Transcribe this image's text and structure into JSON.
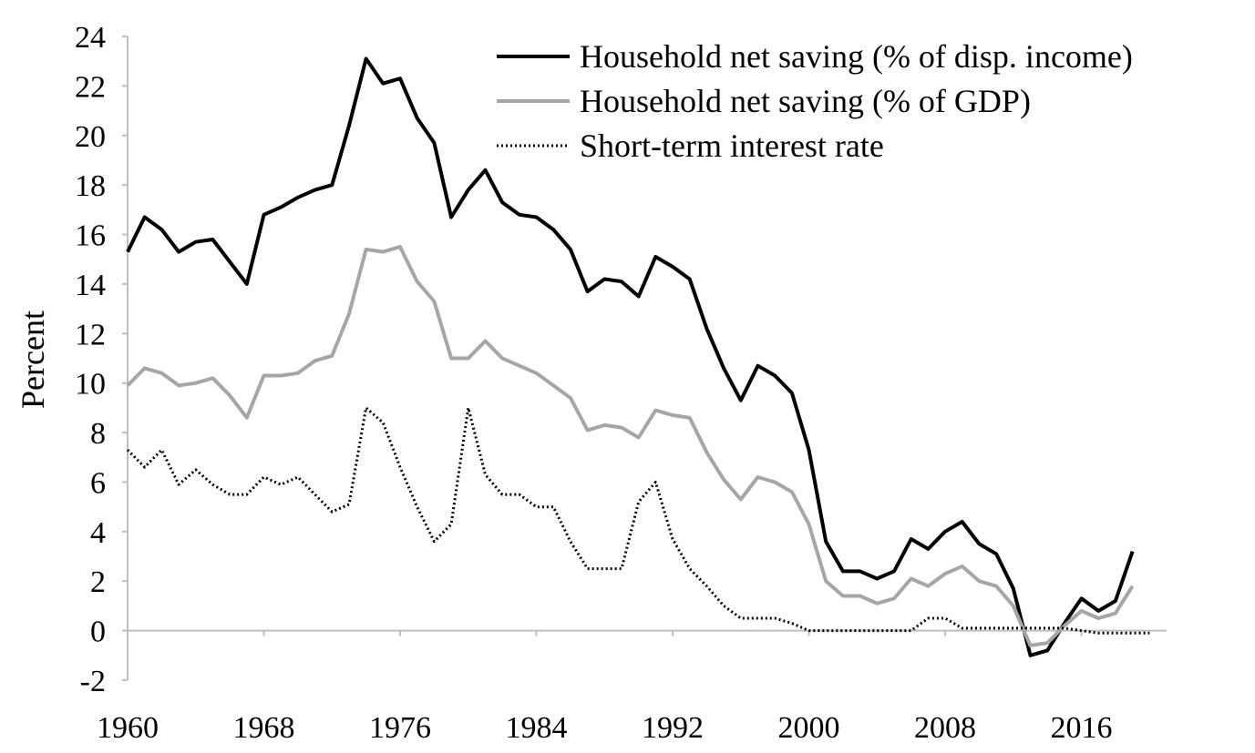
{
  "chart_data": {
    "type": "line",
    "title": "",
    "xlabel": "",
    "ylabel": "Percent",
    "xlim": [
      1960,
      2021
    ],
    "ylim": [
      -2,
      24
    ],
    "x_ticks": [
      "1960",
      "1968",
      "1976",
      "1984",
      "1992",
      "2000",
      "2008",
      "2016"
    ],
    "y_ticks": [
      "-2",
      "0",
      "2",
      "4",
      "6",
      "8",
      "10",
      "12",
      "14",
      "16",
      "18",
      "20",
      "22",
      "24"
    ],
    "grid": false,
    "legend_position": "top-right",
    "series": [
      {
        "name": "Household net saving (% of disp. income)",
        "color": "#000000",
        "style": "solid",
        "x": [
          1960,
          1961,
          1962,
          1963,
          1964,
          1965,
          1966,
          1967,
          1968,
          1969,
          1970,
          1971,
          1972,
          1973,
          1974,
          1975,
          1976,
          1977,
          1978,
          1979,
          1980,
          1981,
          1982,
          1983,
          1984,
          1985,
          1986,
          1987,
          1988,
          1989,
          1990,
          1991,
          1992,
          1993,
          1994,
          1995,
          1996,
          1997,
          1998,
          1999,
          2000,
          2001,
          2002,
          2003,
          2004,
          2005,
          2006,
          2007,
          2008,
          2009,
          2010,
          2011,
          2012,
          2013,
          2014,
          2015,
          2016,
          2017,
          2018,
          2019
        ],
        "values": [
          15.3,
          16.7,
          16.2,
          15.3,
          15.7,
          15.8,
          14.9,
          14.0,
          16.8,
          17.1,
          17.5,
          17.8,
          18.0,
          20.4,
          23.1,
          22.1,
          22.3,
          20.7,
          19.7,
          16.7,
          17.8,
          18.6,
          17.3,
          16.8,
          16.7,
          16.2,
          15.4,
          13.7,
          14.2,
          14.1,
          13.5,
          15.1,
          14.7,
          14.2,
          12.2,
          10.6,
          9.3,
          10.7,
          10.3,
          9.6,
          7.3,
          3.6,
          2.4,
          2.4,
          2.1,
          2.4,
          3.7,
          3.3,
          4.0,
          4.4,
          3.5,
          3.1,
          1.7,
          -1.0,
          -0.8,
          0.3,
          1.3,
          0.8,
          1.2,
          3.2
        ]
      },
      {
        "name": "Household net saving (% of GDP)",
        "color": "#a6a6a6",
        "style": "solid",
        "x": [
          1960,
          1961,
          1962,
          1963,
          1964,
          1965,
          1966,
          1967,
          1968,
          1969,
          1970,
          1971,
          1972,
          1973,
          1974,
          1975,
          1976,
          1977,
          1978,
          1979,
          1980,
          1981,
          1982,
          1983,
          1984,
          1985,
          1986,
          1987,
          1988,
          1989,
          1990,
          1991,
          1992,
          1993,
          1994,
          1995,
          1996,
          1997,
          1998,
          1999,
          2000,
          2001,
          2002,
          2003,
          2004,
          2005,
          2006,
          2007,
          2008,
          2009,
          2010,
          2011,
          2012,
          2013,
          2014,
          2015,
          2016,
          2017,
          2018,
          2019
        ],
        "values": [
          9.9,
          10.6,
          10.4,
          9.9,
          10.0,
          10.2,
          9.5,
          8.6,
          10.3,
          10.3,
          10.4,
          10.9,
          11.1,
          12.8,
          15.4,
          15.3,
          15.5,
          14.1,
          13.3,
          11.0,
          11.0,
          11.7,
          11.0,
          10.7,
          10.4,
          9.9,
          9.4,
          8.1,
          8.3,
          8.2,
          7.8,
          8.9,
          8.7,
          8.6,
          7.2,
          6.1,
          5.3,
          6.2,
          6.0,
          5.6,
          4.3,
          2.0,
          1.4,
          1.4,
          1.1,
          1.3,
          2.1,
          1.8,
          2.3,
          2.6,
          2.0,
          1.8,
          1.0,
          -0.6,
          -0.5,
          0.2,
          0.8,
          0.5,
          0.7,
          1.8
        ]
      },
      {
        "name": "Short-term interest rate",
        "color": "#000000",
        "style": "dotted",
        "x": [
          1960,
          1961,
          1962,
          1963,
          1964,
          1965,
          1966,
          1967,
          1968,
          1969,
          1970,
          1971,
          1972,
          1973,
          1974,
          1975,
          1976,
          1977,
          1978,
          1979,
          1980,
          1981,
          1982,
          1983,
          1984,
          1985,
          1986,
          1987,
          1988,
          1989,
          1990,
          1991,
          1992,
          1993,
          1994,
          1995,
          1996,
          1997,
          1998,
          1999,
          2000,
          2001,
          2002,
          2003,
          2004,
          2005,
          2006,
          2007,
          2008,
          2009,
          2010,
          2011,
          2012,
          2013,
          2014,
          2015,
          2016,
          2017,
          2018,
          2019,
          2020
        ],
        "values": [
          7.3,
          6.6,
          7.3,
          5.9,
          6.5,
          5.9,
          5.5,
          5.5,
          6.2,
          5.9,
          6.2,
          5.5,
          4.8,
          5.1,
          9.0,
          8.4,
          6.6,
          5.0,
          3.6,
          4.3,
          9.0,
          6.3,
          5.5,
          5.5,
          5.0,
          5.0,
          3.6,
          2.5,
          2.5,
          2.5,
          5.2,
          6.0,
          3.7,
          2.5,
          1.8,
          1.0,
          0.5,
          0.5,
          0.5,
          0.3,
          0.0,
          0.0,
          0.0,
          0.0,
          0.0,
          0.0,
          0.0,
          0.5,
          0.5,
          0.1,
          0.1,
          0.1,
          0.1,
          0.1,
          0.1,
          0.1,
          0.0,
          -0.1,
          -0.1,
          -0.1,
          -0.1
        ]
      }
    ]
  }
}
